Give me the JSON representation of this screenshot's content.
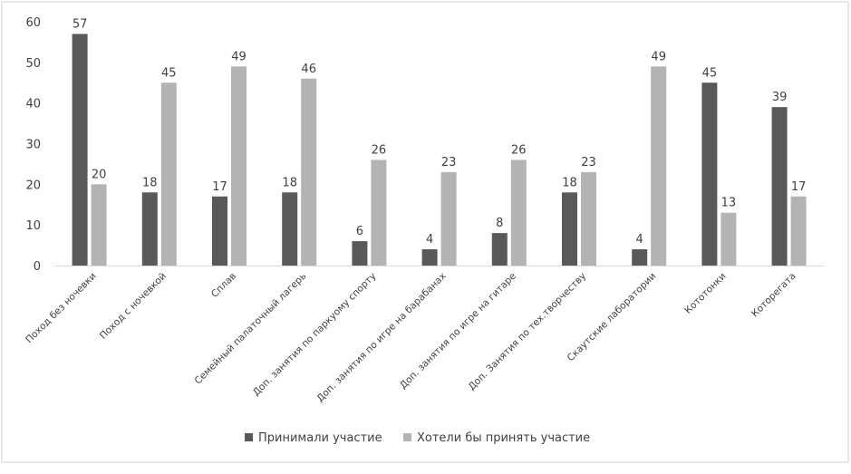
{
  "chart_data": {
    "type": "bar",
    "categories": [
      "Поход без ночевки",
      "Поход с ночевкой",
      "Сплав",
      "Семейный палаточный лагерь",
      "Доп. занятия по паркуому спорту",
      "Доп. занятия по игре на барабанах",
      "Доп. занятия по игре на гитаре",
      "Доп. Занятия по тех.творчеству",
      "Скаутские лаборатории",
      "Кототонки",
      "Котoрегата"
    ],
    "series": [
      {
        "name": "Принимали участие",
        "color": "#595959",
        "values": [
          57,
          18,
          17,
          18,
          6,
          4,
          8,
          18,
          4,
          45,
          39
        ]
      },
      {
        "name": "Хотели бы принять участие",
        "color": "#b3b3b3",
        "values": [
          20,
          45,
          49,
          46,
          26,
          23,
          26,
          23,
          49,
          13,
          17
        ]
      }
    ],
    "yticks": [
      0,
      10,
      20,
      30,
      40,
      50,
      60
    ],
    "ylim": [
      0,
      60
    ],
    "grid": false,
    "legend": "bottom",
    "data_labels": true
  }
}
